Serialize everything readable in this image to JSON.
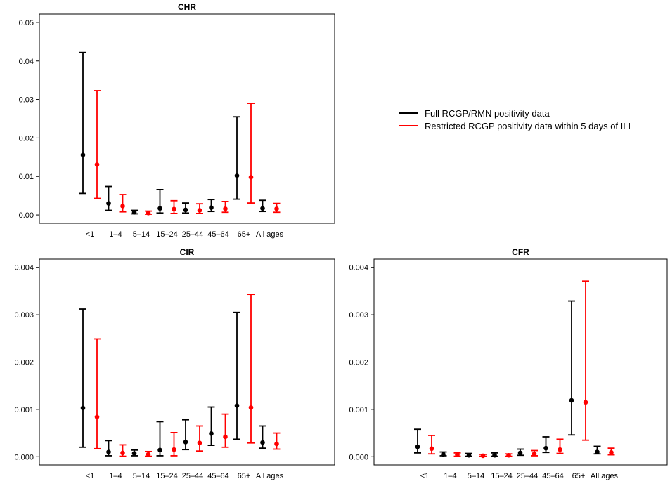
{
  "legend": {
    "position": "top-right",
    "entries": [
      {
        "label": "Full RCGP/RMN positivity data",
        "color": "#000000"
      },
      {
        "label": "Restricted RCGP positivity data within 5 days of ILI",
        "color": "#ff0000"
      }
    ]
  },
  "chart_data": [
    {
      "type": "errorbar",
      "title": "CHR",
      "categories": [
        "<1",
        "1–4",
        "5–14",
        "15–24",
        "25–44",
        "45–64",
        "65+",
        "All ages"
      ],
      "ylim": [
        0,
        0.05
      ],
      "yticks": [
        "0.00",
        "0.01",
        "0.02",
        "0.03",
        "0.04",
        "0.05"
      ],
      "series": [
        {
          "color": "#000000",
          "values": [
            0.0156,
            0.003,
            0.0007,
            0.0017,
            0.0013,
            0.0019,
            0.0102,
            0.0017
          ],
          "lower": [
            0.0056,
            0.0012,
            0.0003,
            0.0005,
            0.0005,
            0.0009,
            0.0041,
            0.0009
          ],
          "upper": [
            0.0422,
            0.0074,
            0.0012,
            0.0066,
            0.0031,
            0.004,
            0.0255,
            0.0038
          ]
        },
        {
          "color": "#ff0000",
          "values": [
            0.0131,
            0.0023,
            0.0005,
            0.0015,
            0.0012,
            0.0016,
            0.0098,
            0.0016
          ],
          "lower": [
            0.0043,
            0.0008,
            0.0002,
            0.0004,
            0.0004,
            0.0007,
            0.0031,
            0.0007
          ],
          "upper": [
            0.0323,
            0.0053,
            0.001,
            0.0037,
            0.0029,
            0.0035,
            0.029,
            0.003
          ]
        }
      ]
    },
    {
      "type": "errorbar",
      "title": "CIR",
      "categories": [
        "<1",
        "1–4",
        "5–14",
        "15–24",
        "25–44",
        "45–64",
        "65+",
        "All ages"
      ],
      "ylim": [
        0,
        0.004
      ],
      "yticks": [
        "0.000",
        "0.001",
        "0.002",
        "0.003",
        "0.004"
      ],
      "series": [
        {
          "color": "#000000",
          "values": [
            0.00103,
            0.0001,
            7e-05,
            0.00014,
            0.00031,
            0.00049,
            0.00108,
            0.0003
          ],
          "lower": [
            0.0002,
            2e-05,
            2e-05,
            2e-05,
            0.00015,
            0.00024,
            0.00037,
            0.00018
          ],
          "upper": [
            0.00312,
            0.00034,
            0.00014,
            0.00074,
            0.00078,
            0.00105,
            0.00305,
            0.00065
          ]
        },
        {
          "color": "#ff0000",
          "values": [
            0.00084,
            8e-05,
            5e-05,
            0.00015,
            0.00029,
            0.00042,
            0.00104,
            0.00027
          ],
          "lower": [
            0.00017,
            1e-05,
            1e-05,
            2e-05,
            0.00012,
            0.0002,
            0.00029,
            0.00016
          ],
          "upper": [
            0.00249,
            0.00025,
            0.00011,
            0.00051,
            0.00065,
            0.0009,
            0.00343,
            0.0005
          ]
        }
      ]
    },
    {
      "type": "errorbar",
      "title": "CFR",
      "categories": [
        "<1",
        "1–4",
        "5–14",
        "15–24",
        "25–44",
        "45–64",
        "65+",
        "All ages"
      ],
      "ylim": [
        0,
        0.004
      ],
      "yticks": [
        "0.000",
        "0.001",
        "0.002",
        "0.003",
        "0.004"
      ],
      "series": [
        {
          "color": "#000000",
          "values": [
            0.00021,
            5e-05,
            3e-05,
            3e-05,
            8e-05,
            0.00018,
            0.00119,
            0.0001
          ],
          "lower": [
            8e-05,
            2e-05,
            1e-05,
            1e-05,
            3e-05,
            9e-05,
            0.00046,
            6e-05
          ],
          "upper": [
            0.00058,
            0.0001,
            7e-05,
            8e-05,
            0.00016,
            0.00042,
            0.00329,
            0.00022
          ]
        },
        {
          "color": "#ff0000",
          "values": [
            0.00017,
            4e-05,
            2e-05,
            3e-05,
            6e-05,
            0.00015,
            0.00115,
            9e-05
          ],
          "lower": [
            6e-05,
            1e-05,
            1e-05,
            1e-05,
            2e-05,
            7e-05,
            0.00035,
            4e-05
          ],
          "upper": [
            0.00045,
            8e-05,
            5e-05,
            6e-05,
            0.00013,
            0.00037,
            0.00371,
            0.00018
          ]
        }
      ]
    }
  ]
}
